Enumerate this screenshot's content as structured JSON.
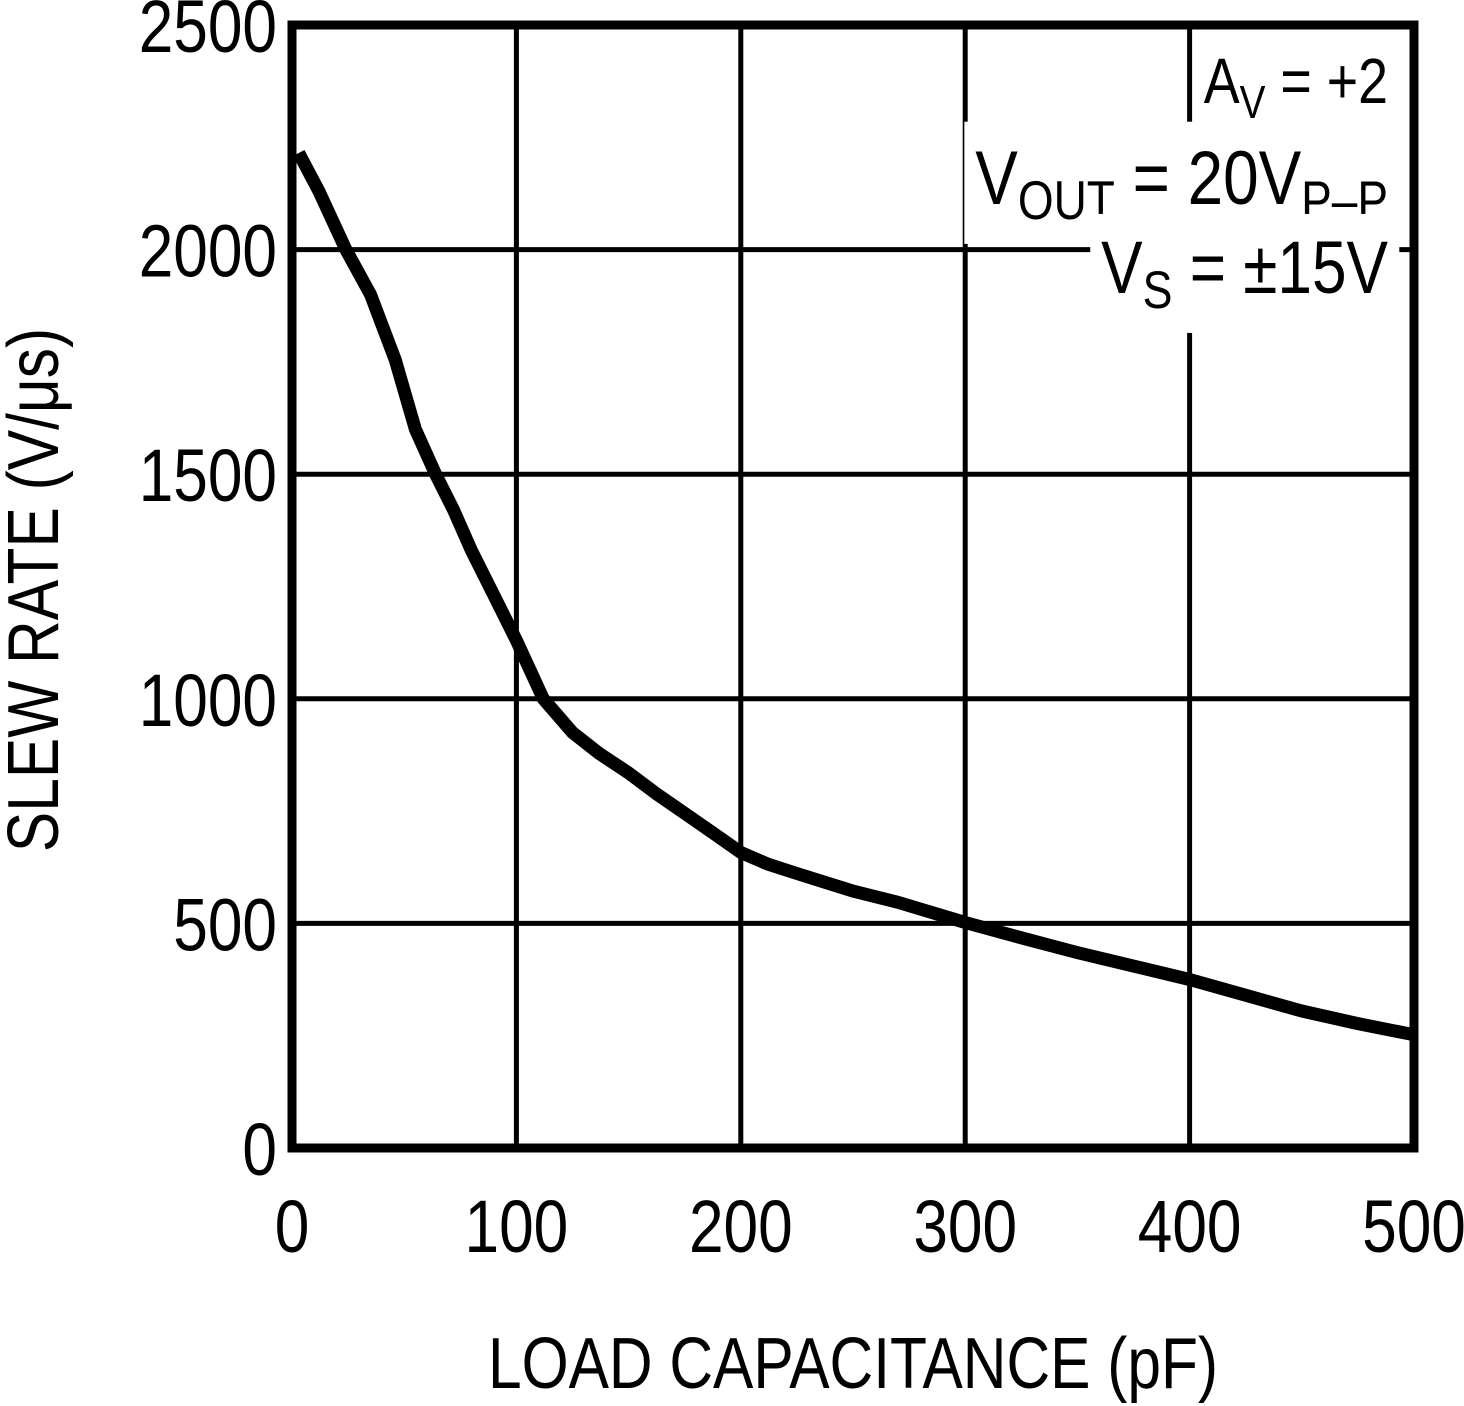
{
  "chart_data": {
    "type": "line",
    "title": "",
    "xlabel": "LOAD CAPACITANCE (pF)",
    "ylabel": "SLEW RATE (V/μs)",
    "xlim": [
      0,
      500
    ],
    "ylim": [
      0,
      2500
    ],
    "xticks": [
      0,
      100,
      200,
      300,
      400,
      500
    ],
    "yticks": [
      0,
      500,
      1000,
      1500,
      2000,
      2500
    ],
    "grid": true,
    "legend": "none",
    "series": [
      {
        "name": "slew-rate-vs-load-capacitance",
        "x": [
          3,
          12,
          24,
          35,
          46,
          55,
          64,
          72,
          80,
          90,
          100,
          112,
          125,
          137,
          150,
          162,
          175,
          188,
          200,
          212,
          225,
          250,
          270,
          300,
          325,
          350,
          375,
          400,
          425,
          450,
          475,
          500
        ],
        "y": [
          2215,
          2130,
          2000,
          1900,
          1755,
          1600,
          1500,
          1420,
          1330,
          1230,
          1130,
          1000,
          925,
          878,
          835,
          790,
          745,
          700,
          658,
          632,
          611,
          572,
          547,
          502,
          468,
          435,
          405,
          375,
          340,
          305,
          277,
          252
        ]
      }
    ],
    "annotations": [
      {
        "plain": "AV = +2",
        "parts": [
          {
            "t": "A"
          },
          {
            "t": "V",
            "sub": true
          },
          {
            "t": " = +2"
          }
        ]
      },
      {
        "plain": "VOUT = 20VP-P",
        "parts": [
          {
            "t": "V"
          },
          {
            "t": "OUT",
            "sub": true
          },
          {
            "t": " = 20V"
          },
          {
            "t": "P–P",
            "sub": true
          }
        ]
      },
      {
        "plain": "VS = ±15V",
        "parts": [
          {
            "t": "V"
          },
          {
            "t": "S",
            "sub": true
          },
          {
            "t": " = ±15V"
          }
        ]
      }
    ],
    "colors": {
      "line": "#000000",
      "grid": "#000000",
      "frame": "#000000",
      "text": "#000000",
      "background": "#ffffff"
    }
  }
}
